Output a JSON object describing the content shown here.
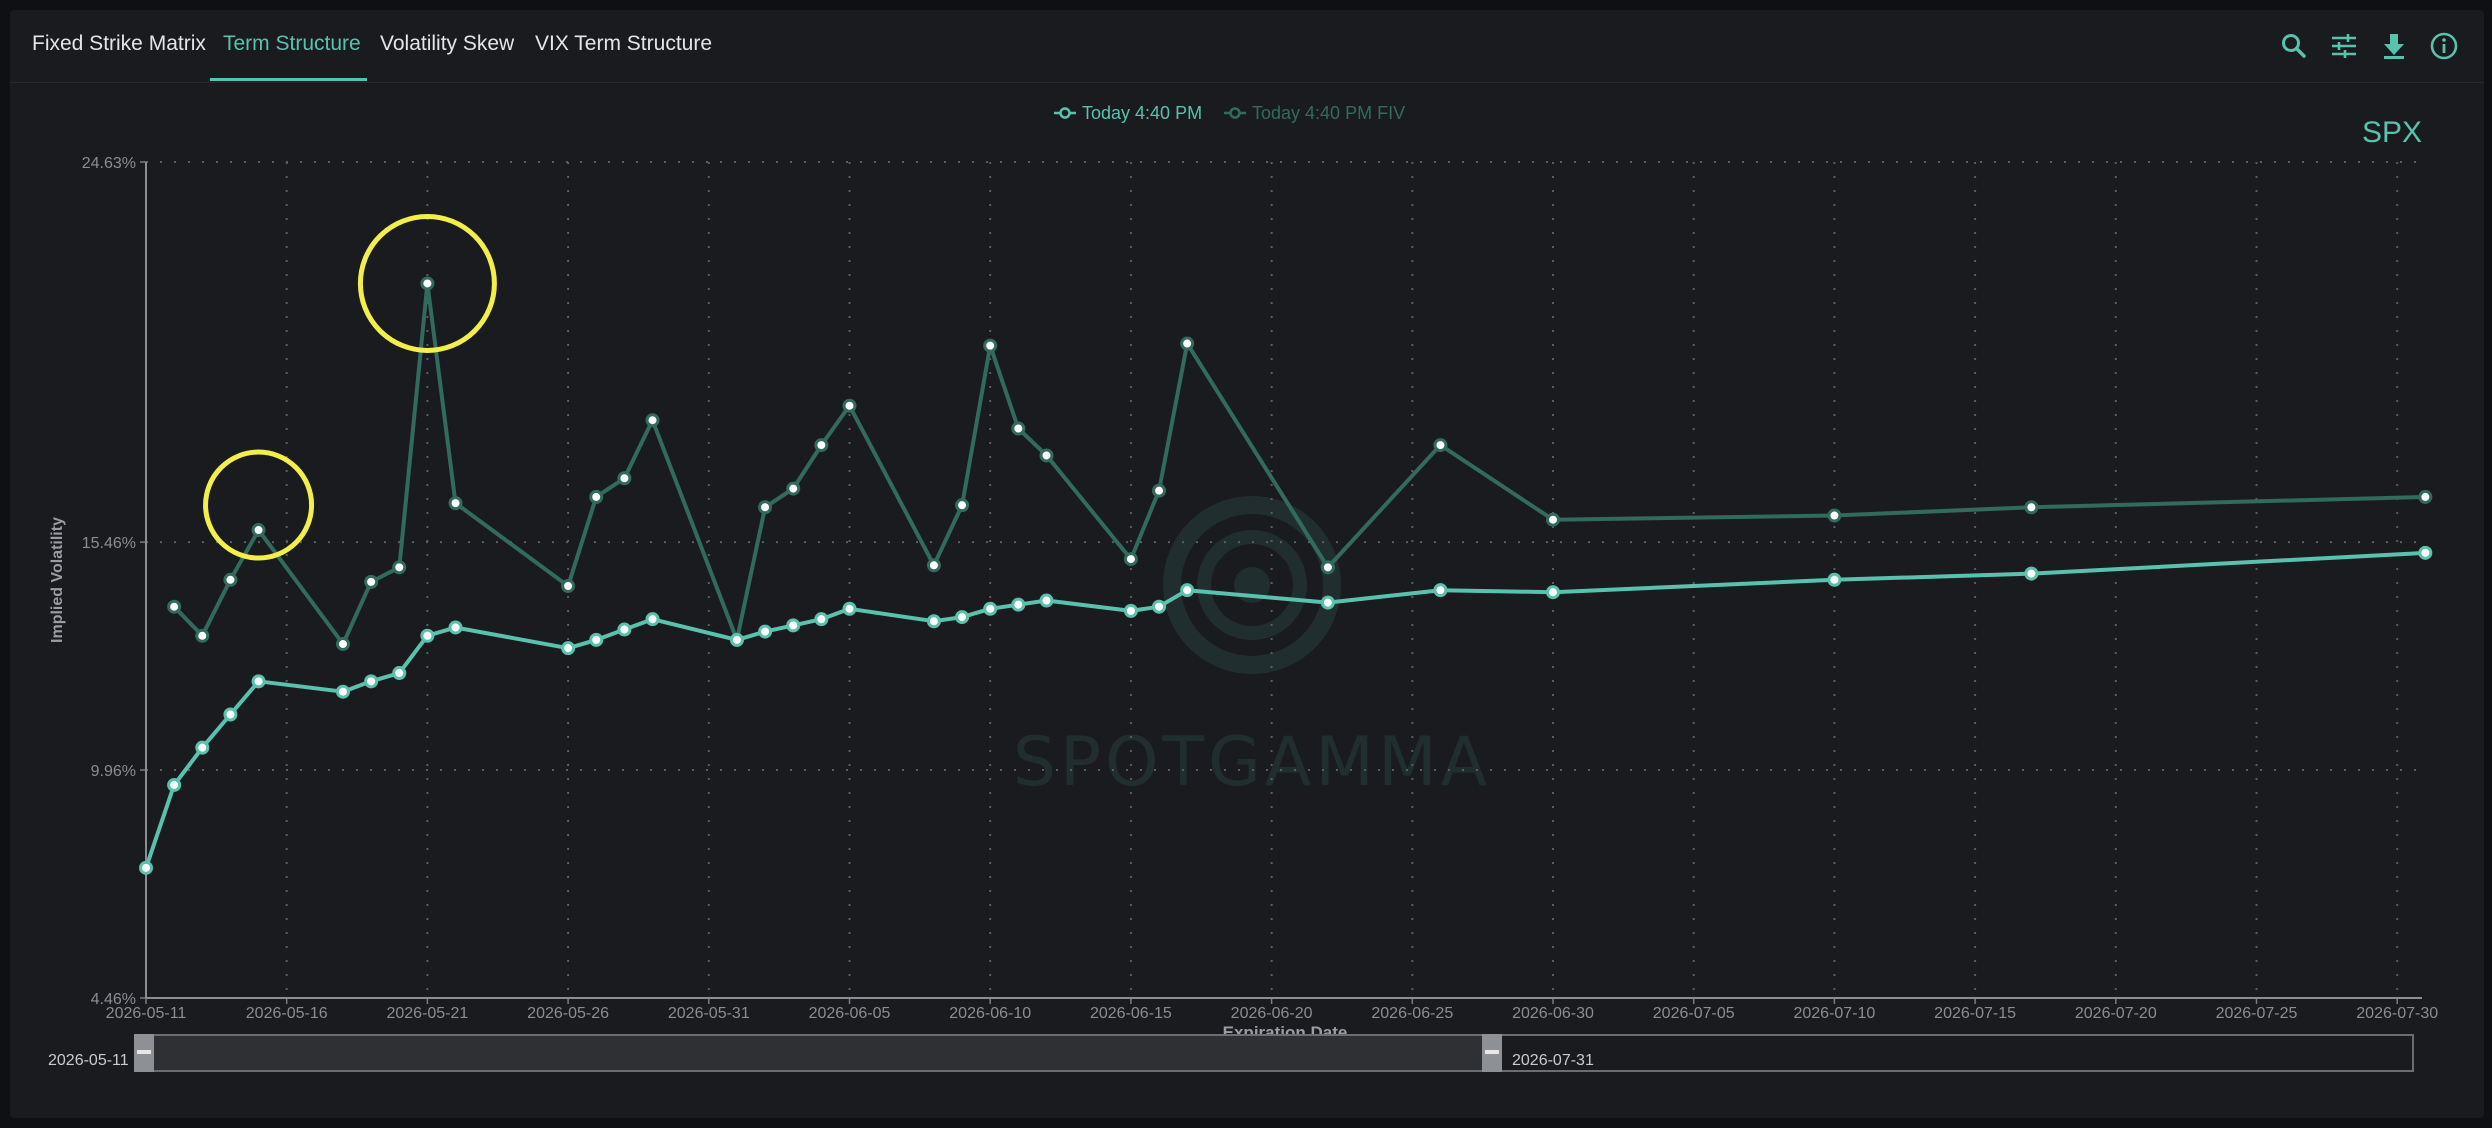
{
  "tabs": [
    {
      "label": "Fixed Strike Matrix",
      "active": false
    },
    {
      "label": "Term Structure",
      "active": true
    },
    {
      "label": "Volatility Skew",
      "active": false
    },
    {
      "label": "VIX Term Structure",
      "active": false
    }
  ],
  "toolbar": [
    "search-icon",
    "sliders-icon",
    "download-icon",
    "info-icon"
  ],
  "colors": {
    "accent": "#59c2ae",
    "series_fiv": "#336a5e",
    "annotation": "#f3ef4a",
    "grid": "#55585e",
    "text": "#8a8d92"
  },
  "range_slider": {
    "start": "2026-05-11",
    "end": "2026-07-31"
  },
  "chart_data": {
    "type": "line",
    "symbol": "SPX",
    "xlabel": "Expiration Date",
    "ylabel": "Implied Volatility",
    "ytick_labels": [
      "24.63%",
      "15.46%",
      "9.96%",
      "4.46%"
    ],
    "ytick_values": [
      24.63,
      15.46,
      9.96,
      4.46
    ],
    "ylim": [
      4.46,
      24.63
    ],
    "xtick_labels": [
      "2026-05-11",
      "2026-05-16",
      "2026-05-21",
      "2026-05-26",
      "2026-05-31",
      "2026-06-05",
      "2026-06-10",
      "2026-06-15",
      "2026-06-20",
      "2026-06-25",
      "2026-06-30",
      "2026-07-05",
      "2026-07-10",
      "2026-07-15",
      "2026-07-20",
      "2026-07-25",
      "2026-07-30"
    ],
    "xlim": [
      "2026-05-11",
      "2026-07-31"
    ],
    "grid": true,
    "legend_position": "top-center",
    "x": [
      "2026-05-11",
      "2026-05-12",
      "2026-05-13",
      "2026-05-14",
      "2026-05-15",
      "2026-05-18",
      "2026-05-19",
      "2026-05-20",
      "2026-05-21",
      "2026-05-22",
      "2026-05-26",
      "2026-05-27",
      "2026-05-28",
      "2026-05-29",
      "2026-06-01",
      "2026-06-02",
      "2026-06-03",
      "2026-06-04",
      "2026-06-05",
      "2026-06-08",
      "2026-06-09",
      "2026-06-10",
      "2026-06-11",
      "2026-06-12",
      "2026-06-15",
      "2026-06-16",
      "2026-06-17",
      "2026-06-18",
      "2026-06-22",
      "2026-06-26",
      "2026-06-30",
      "2026-07-10",
      "2026-07-17",
      "2026-07-31"
    ],
    "series": [
      {
        "name": "Today 4:40 PM",
        "color": "#59c2ae",
        "values": [
          7.6,
          9.6,
          10.5,
          11.3,
          12.1,
          11.85,
          12.1,
          12.3,
          13.2,
          13.4,
          12.9,
          13.1,
          13.35,
          13.6,
          13.1,
          13.3,
          13.45,
          13.6,
          13.85,
          13.55,
          13.65,
          13.85,
          13.95,
          14.05,
          13.8,
          13.9,
          14.3,
          null,
          14.0,
          14.3,
          14.25,
          14.55,
          14.7,
          15.2
        ]
      },
      {
        "name": "Today 4:40 PM FIV",
        "color": "#336a5e",
        "values": [
          null,
          13.9,
          13.2,
          14.55,
          15.75,
          13.0,
          14.5,
          14.85,
          21.7,
          16.4,
          14.4,
          16.55,
          17.0,
          18.4,
          13.1,
          16.3,
          16.75,
          17.8,
          18.75,
          14.9,
          16.35,
          20.2,
          18.2,
          17.55,
          15.05,
          16.7,
          20.25,
          null,
          14.85,
          17.8,
          16.0,
          16.1,
          16.3,
          16.55
        ]
      }
    ],
    "annotations": [
      {
        "type": "circle",
        "x": "2026-05-15",
        "y": 15.75
      },
      {
        "type": "circle",
        "x": "2026-05-21",
        "y": 21.7
      }
    ]
  }
}
